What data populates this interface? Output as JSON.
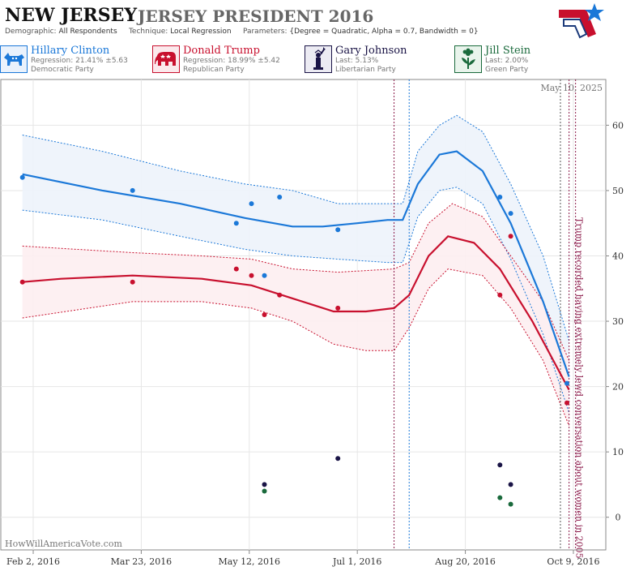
{
  "header": {
    "state": "NEW JERSEY",
    "race": "JERSEY PRESIDENT 2016",
    "demographic_label": "Demographic:",
    "demographic_value": "All Respondents",
    "technique_label": "Technique:",
    "technique_value": "Local Regression",
    "parameters_label": "Parameters:",
    "parameters_value": "{Degree = Quadratic, Alpha = 0.7, Bandwidth = 0}"
  },
  "candidates": [
    {
      "name": "Hillary Clinton",
      "line2": "Regression: 21.41% ±5.63",
      "party": "Democratic Party",
      "color": "#1b78d8",
      "icon": "donkey-icon"
    },
    {
      "name": "Donald Trump",
      "line2": "Regression: 18.99% ±5.42",
      "party": "Republican Party",
      "color": "#c8102e",
      "icon": "elephant-icon"
    },
    {
      "name": "Gary Johnson",
      "line2": "Last: 5.13%",
      "party": "Libertarian Party",
      "color": "#1a1446",
      "icon": "statue-of-liberty-icon"
    },
    {
      "name": "Jill Stein",
      "line2": "Last: 2.00%",
      "party": "Green Party",
      "color": "#1a6a3c",
      "icon": "flower-icon"
    }
  ],
  "footer": {
    "watermark": "HowWillAmericaVote.com"
  },
  "chart_data": {
    "type": "scatter",
    "date_stamp": "May 10, 2025",
    "x_ticks": [
      "Feb 2, 2016",
      "Mar 23, 2016",
      "May 12, 2016",
      "Jul 1, 2016",
      "Aug 20, 2016",
      "Oct 9, 2016"
    ],
    "xlim": [
      "2016-01-18",
      "2016-10-24"
    ],
    "y_ticks": [
      0,
      10,
      20,
      30,
      40,
      50,
      60
    ],
    "ylim": [
      -5,
      67
    ],
    "grid": true,
    "event_annotation": "Trump recorded having extremely lewd conversation about women in 2005",
    "event_lines": [
      {
        "date": "2016-07-18",
        "color": "#8b1a4a"
      },
      {
        "date": "2016-07-25",
        "color": "#1b78d8"
      },
      {
        "date": "2016-10-03",
        "color": "#555555"
      },
      {
        "date": "2016-10-07",
        "color": "#8b1a4a"
      },
      {
        "date": "2016-10-10",
        "color": "#8b1a4a"
      }
    ],
    "series": [
      {
        "name": "Hillary Clinton",
        "color": "#1b78d8",
        "band": "#edf3fb",
        "points": [
          [
            "2016-01-28",
            52
          ],
          [
            "2016-03-19",
            50
          ],
          [
            "2016-05-06",
            45
          ],
          [
            "2016-05-13",
            48
          ],
          [
            "2016-05-19",
            37
          ],
          [
            "2016-05-26",
            49
          ],
          [
            "2016-06-22",
            44
          ],
          [
            "2016-09-05",
            49
          ],
          [
            "2016-09-10",
            46.5
          ],
          [
            "2016-10-06",
            20.5
          ]
        ],
        "trend": [
          [
            "2016-01-28",
            52.5
          ],
          [
            "2016-03-05",
            50
          ],
          [
            "2016-04-10",
            48
          ],
          [
            "2016-05-10",
            45.8
          ],
          [
            "2016-06-01",
            44.5
          ],
          [
            "2016-06-15",
            44.5
          ],
          [
            "2016-07-01",
            45
          ],
          [
            "2016-07-15",
            45.5
          ],
          [
            "2016-07-22",
            45.5
          ],
          [
            "2016-07-29",
            51
          ],
          [
            "2016-08-08",
            55.5
          ],
          [
            "2016-08-16",
            56
          ],
          [
            "2016-08-28",
            53
          ],
          [
            "2016-09-10",
            45
          ],
          [
            "2016-09-25",
            33
          ],
          [
            "2016-10-07",
            21.5
          ]
        ],
        "upper": [
          [
            "2016-01-28",
            58.5
          ],
          [
            "2016-03-05",
            56
          ],
          [
            "2016-04-10",
            53
          ],
          [
            "2016-05-10",
            51
          ],
          [
            "2016-06-01",
            50
          ],
          [
            "2016-06-22",
            48
          ],
          [
            "2016-07-15",
            48
          ],
          [
            "2016-07-22",
            48
          ],
          [
            "2016-07-29",
            56
          ],
          [
            "2016-08-08",
            60
          ],
          [
            "2016-08-16",
            61.5
          ],
          [
            "2016-08-28",
            59
          ],
          [
            "2016-09-10",
            51
          ],
          [
            "2016-09-25",
            40
          ],
          [
            "2016-10-07",
            27
          ]
        ],
        "lower": [
          [
            "2016-01-28",
            47
          ],
          [
            "2016-03-05",
            45.5
          ],
          [
            "2016-04-10",
            43
          ],
          [
            "2016-05-10",
            41
          ],
          [
            "2016-06-01",
            40
          ],
          [
            "2016-06-22",
            39.5
          ],
          [
            "2016-07-15",
            39
          ],
          [
            "2016-07-22",
            39
          ],
          [
            "2016-07-29",
            46
          ],
          [
            "2016-08-08",
            50
          ],
          [
            "2016-08-16",
            50.5
          ],
          [
            "2016-08-28",
            48
          ],
          [
            "2016-09-10",
            39.5
          ],
          [
            "2016-09-25",
            28
          ],
          [
            "2016-10-07",
            16
          ]
        ]
      },
      {
        "name": "Donald Trump",
        "color": "#c8102e",
        "band": "#fdeef1",
        "points": [
          [
            "2016-01-28",
            36
          ],
          [
            "2016-03-19",
            36
          ],
          [
            "2016-05-06",
            38
          ],
          [
            "2016-05-13",
            37
          ],
          [
            "2016-05-19",
            31
          ],
          [
            "2016-05-26",
            34
          ],
          [
            "2016-06-22",
            32
          ],
          [
            "2016-09-05",
            34
          ],
          [
            "2016-09-10",
            43
          ],
          [
            "2016-10-06",
            17.5
          ]
        ],
        "trend": [
          [
            "2016-01-28",
            36
          ],
          [
            "2016-02-15",
            36.5
          ],
          [
            "2016-03-19",
            37
          ],
          [
            "2016-04-20",
            36.5
          ],
          [
            "2016-05-13",
            35.5
          ],
          [
            "2016-06-01",
            33.5
          ],
          [
            "2016-06-20",
            31.5
          ],
          [
            "2016-07-05",
            31.5
          ],
          [
            "2016-07-18",
            32
          ],
          [
            "2016-07-25",
            34
          ],
          [
            "2016-08-03",
            40
          ],
          [
            "2016-08-12",
            43
          ],
          [
            "2016-08-24",
            42
          ],
          [
            "2016-09-05",
            38
          ],
          [
            "2016-09-20",
            30
          ],
          [
            "2016-10-07",
            19.5
          ]
        ],
        "upper": [
          [
            "2016-01-28",
            41.5
          ],
          [
            "2016-03-19",
            40.5
          ],
          [
            "2016-04-20",
            40
          ],
          [
            "2016-05-13",
            39.5
          ],
          [
            "2016-06-01",
            38
          ],
          [
            "2016-06-22",
            37.5
          ],
          [
            "2016-07-18",
            38
          ],
          [
            "2016-07-25",
            39
          ],
          [
            "2016-08-03",
            45
          ],
          [
            "2016-08-14",
            48
          ],
          [
            "2016-08-28",
            46
          ],
          [
            "2016-09-10",
            40
          ],
          [
            "2016-09-25",
            33
          ],
          [
            "2016-10-07",
            24
          ]
        ],
        "lower": [
          [
            "2016-01-28",
            30.5
          ],
          [
            "2016-03-19",
            33
          ],
          [
            "2016-04-20",
            33
          ],
          [
            "2016-05-13",
            32
          ],
          [
            "2016-06-01",
            30
          ],
          [
            "2016-06-20",
            26.5
          ],
          [
            "2016-07-05",
            25.5
          ],
          [
            "2016-07-18",
            25.5
          ],
          [
            "2016-07-25",
            29
          ],
          [
            "2016-08-03",
            35
          ],
          [
            "2016-08-12",
            38
          ],
          [
            "2016-08-28",
            37
          ],
          [
            "2016-09-10",
            32
          ],
          [
            "2016-09-25",
            24
          ],
          [
            "2016-10-07",
            14
          ]
        ]
      },
      {
        "name": "Gary Johnson",
        "color": "#1a1446",
        "points": [
          [
            "2016-05-19",
            5
          ],
          [
            "2016-06-22",
            9
          ],
          [
            "2016-09-05",
            8
          ],
          [
            "2016-09-10",
            5
          ]
        ]
      },
      {
        "name": "Jill Stein",
        "color": "#1a6a3c",
        "points": [
          [
            "2016-05-19",
            4
          ],
          [
            "2016-09-05",
            3
          ],
          [
            "2016-09-10",
            2
          ]
        ]
      }
    ]
  }
}
